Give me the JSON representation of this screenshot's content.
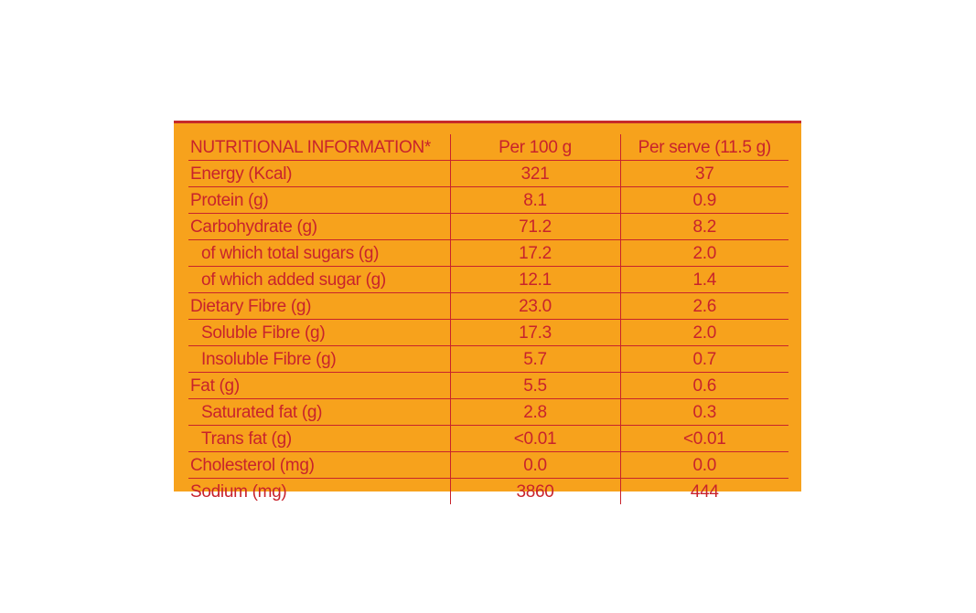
{
  "header": {
    "label": "NUTRITIONAL INFORMATION*",
    "per100": "Per 100 g",
    "perServe": "Per serve (11.5 g)"
  },
  "rows": [
    {
      "label": "Energy (Kcal)",
      "per100": "321",
      "perServe": "37"
    },
    {
      "label": "Protein (g)",
      "per100": "8.1",
      "perServe": "0.9"
    },
    {
      "label": "Carbohydrate (g)",
      "per100": "71.2",
      "perServe": "8.2"
    },
    {
      "label": "of which total sugars (g)",
      "per100": "17.2",
      "perServe": "2.0"
    },
    {
      "label": "of which added sugar (g)",
      "per100": "12.1",
      "perServe": "1.4"
    },
    {
      "label": "Dietary Fibre (g)",
      "per100": "23.0",
      "perServe": "2.6"
    },
    {
      "label": "Soluble Fibre (g)",
      "per100": "17.3",
      "perServe": "2.0"
    },
    {
      "label": "Insoluble Fibre (g)",
      "per100": "5.7",
      "perServe": "0.7"
    },
    {
      "label": "Fat (g)",
      "per100": "5.5",
      "perServe": "0.6"
    },
    {
      "label": "Saturated fat (g)",
      "per100": "2.8",
      "perServe": "0.3"
    },
    {
      "label": "Trans fat (g)",
      "per100": "<0.01",
      "perServe": "<0.01"
    },
    {
      "label": "Cholesterol (mg)",
      "per100": "0.0",
      "perServe": "0.0"
    },
    {
      "label": "Sodium (mg)",
      "per100": "3860",
      "perServe": "444"
    }
  ],
  "colors": {
    "panel": "#f7a21c",
    "text": "#c8232c",
    "lines": "#c8232c"
  }
}
